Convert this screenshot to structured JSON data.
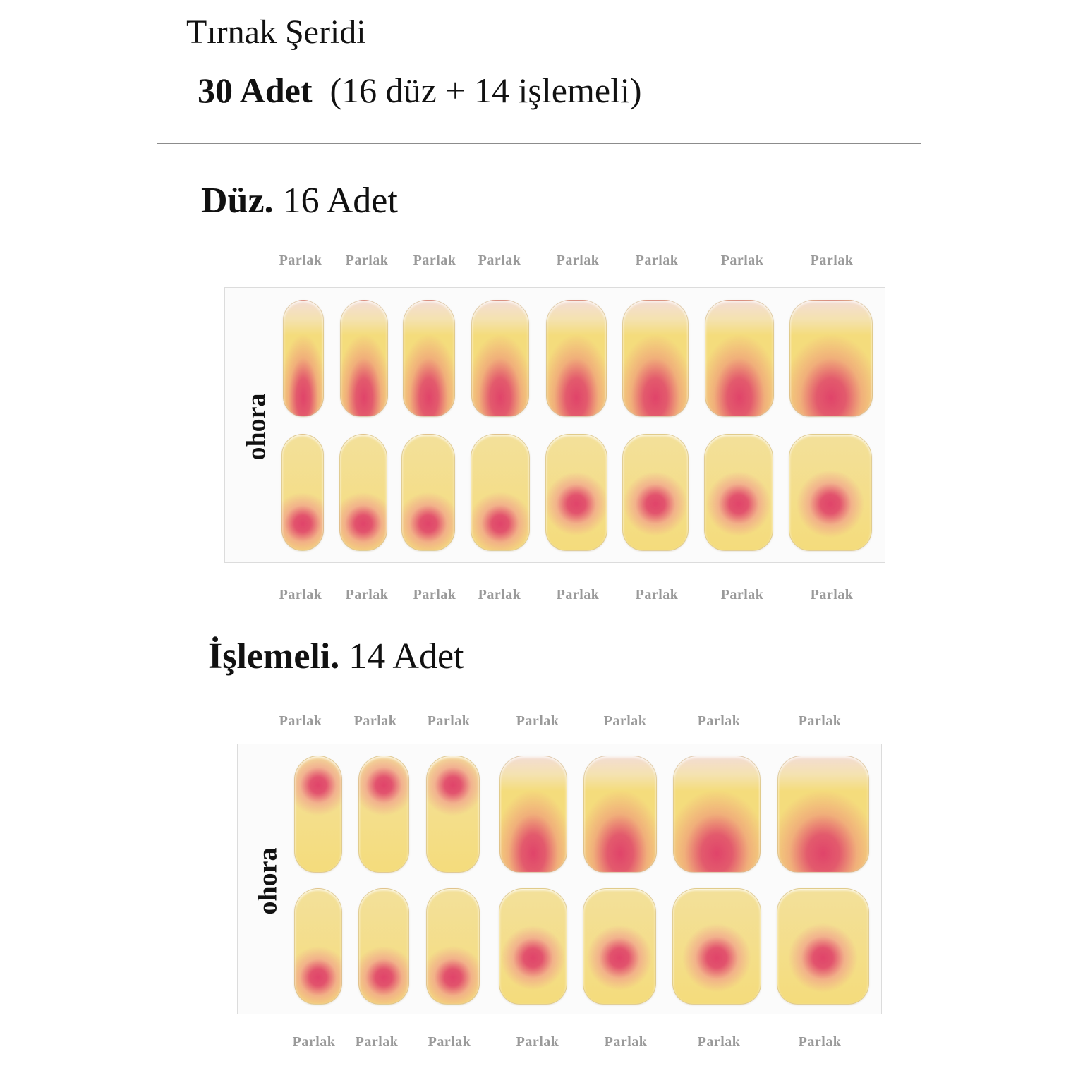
{
  "header": {
    "title": "Tırnak Şeridi",
    "count_bold": "30 Adet",
    "count_detail": "(16 düz + 14 işlemeli)"
  },
  "sections": [
    {
      "heading_bold": "Düz.",
      "heading_rest": "16 Adet",
      "brand": "ohora",
      "top_labels": [
        "Parlak",
        "Parlak",
        "Parlak",
        "Parlak",
        "Parlak",
        "Parlak",
        "Parlak",
        "Parlak"
      ],
      "bottom_labels": [
        "Parlak",
        "Parlak",
        "Parlak",
        "Parlak",
        "Parlak",
        "Parlak",
        "Parlak",
        "Parlak"
      ],
      "rows": [
        [
          "flame",
          "flame",
          "flame",
          "flame",
          "flame",
          "flame",
          "flame",
          "flame"
        ],
        [
          "dot-bottom",
          "dot-bottom",
          "dot-bottom",
          "dot-bottom",
          "dot-center",
          "dot-center",
          "dot-center",
          "dot-center"
        ]
      ]
    },
    {
      "heading_bold": "İşlemeli.",
      "heading_rest": "14 Adet",
      "brand": "ohora",
      "top_labels": [
        "Parlak",
        "Parlak",
        "Parlak",
        "Parlak",
        "Parlak",
        "Parlak",
        "Parlak"
      ],
      "bottom_labels": [
        "Parlak",
        "Parlak",
        "Parlak",
        "Parlak",
        "Parlak",
        "Parlak",
        "Parlak"
      ],
      "rows": [
        [
          "dot-top",
          "dot-top",
          "dot-top",
          "flame",
          "flame",
          "flame",
          "flame"
        ],
        [
          "dot-bottom",
          "dot-bottom",
          "dot-bottom",
          "dot-center",
          "dot-center",
          "dot-center",
          "dot-center"
        ]
      ]
    }
  ],
  "colors": {
    "nail_base": "#f4dc7c",
    "nail_tip": "#f3dcd3",
    "accent_pink": "#e0446a",
    "label_gray": "#9a9a9a",
    "divider": "#8c8c8c"
  }
}
